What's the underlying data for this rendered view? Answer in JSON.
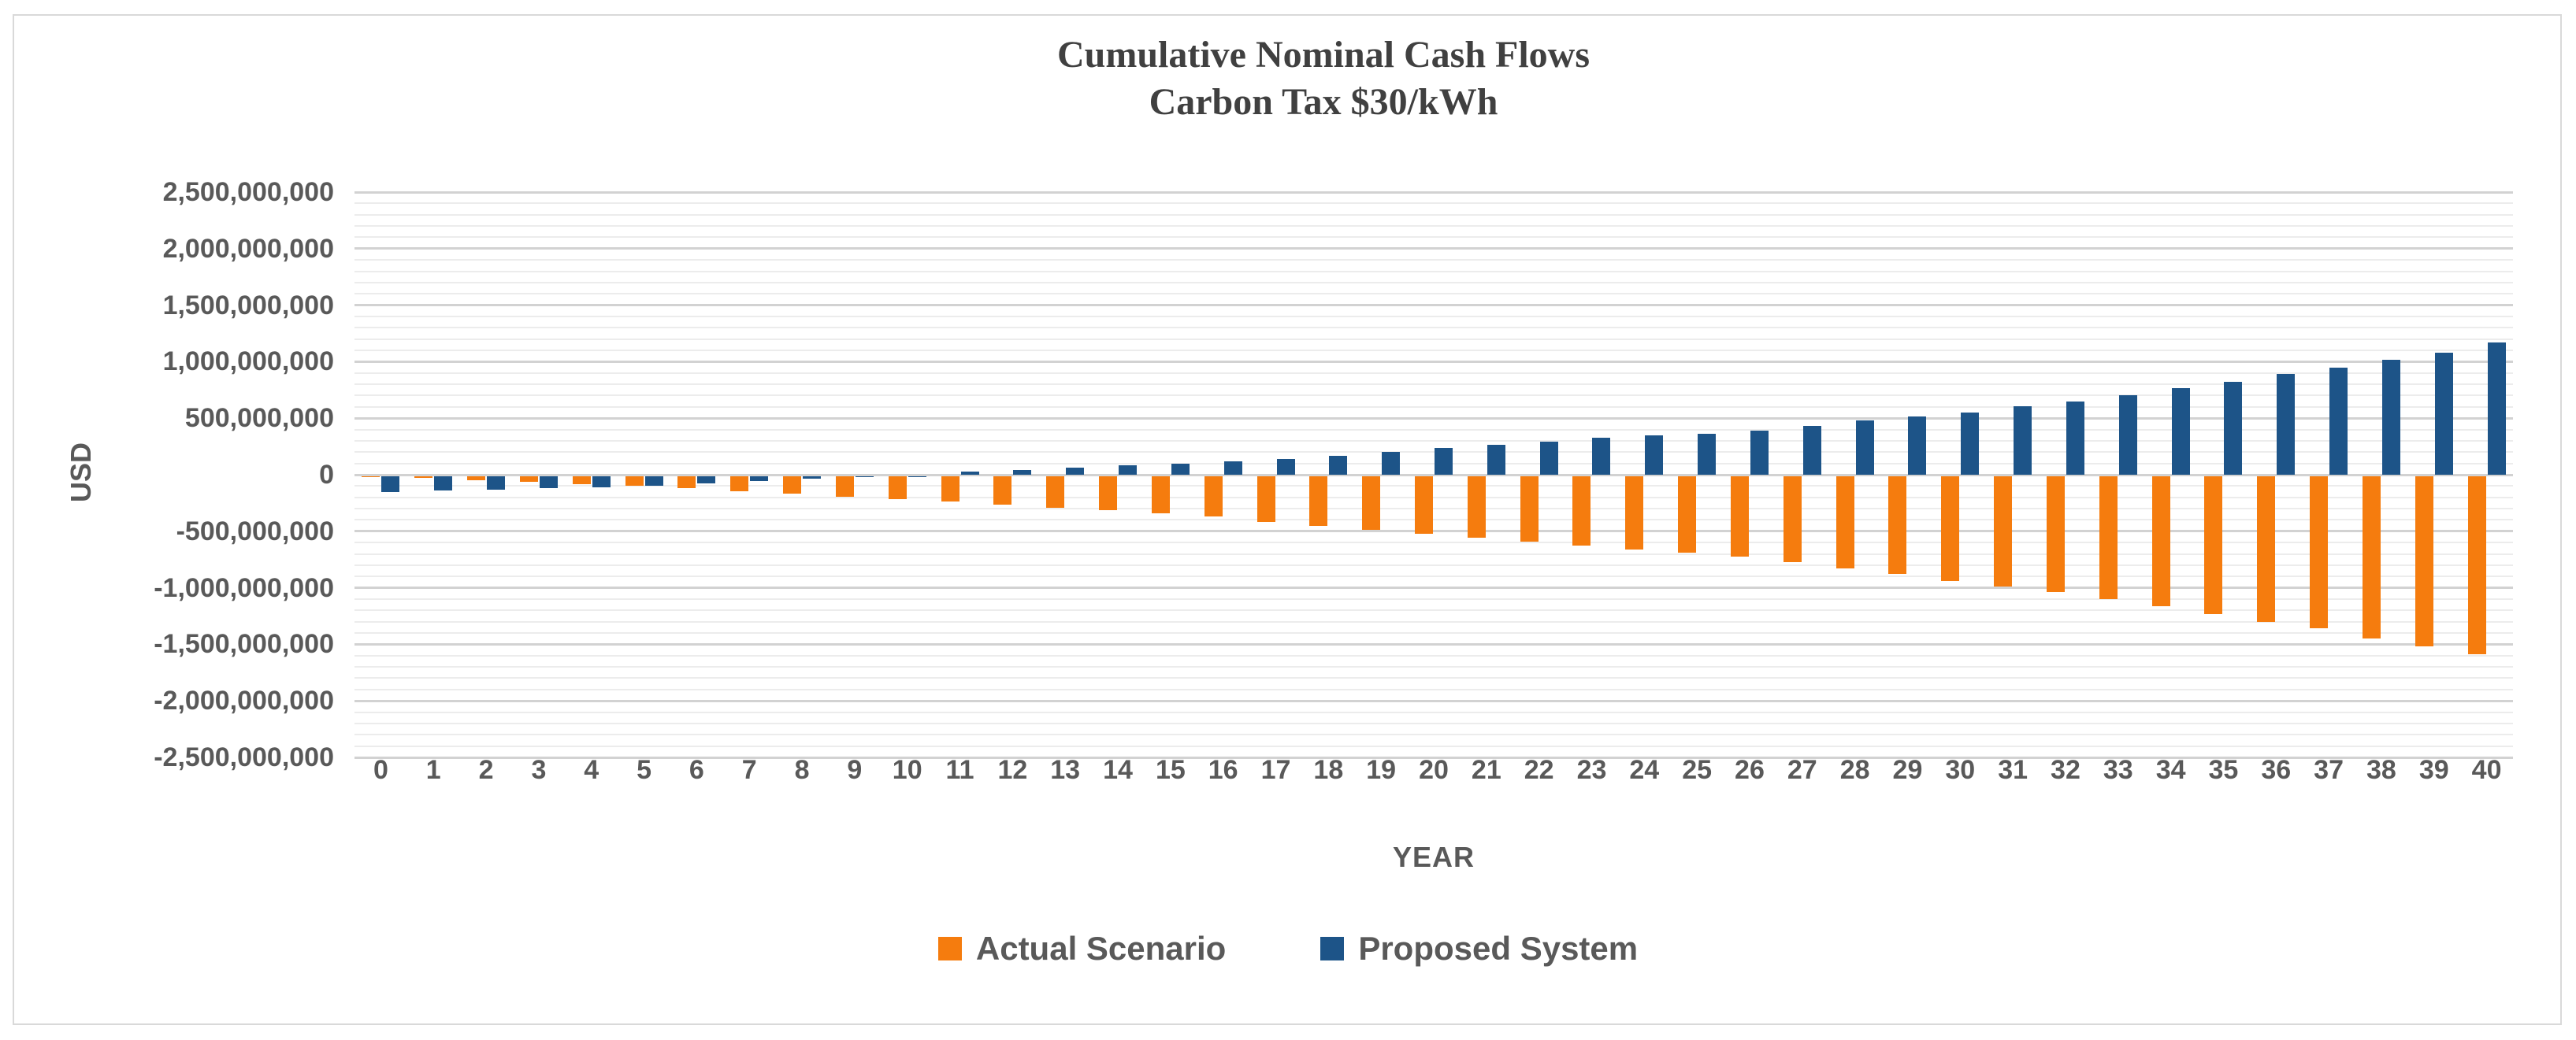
{
  "title": {
    "line1": "Cumulative Nominal Cash Flows",
    "line2": "Carbon Tax $30/kWh"
  },
  "y_axis": {
    "title": "USD",
    "tick_labels": [
      "2,500,000,000",
      "2,000,000,000",
      "1,500,000,000",
      "1,000,000,000",
      "500,000,000",
      "0",
      "-500,000,000",
      "-1,000,000,000",
      "-1,500,000,000",
      "-2,000,000,000",
      "-2,500,000,000"
    ]
  },
  "x_axis": {
    "title": "YEAR"
  },
  "legend": {
    "items": [
      {
        "label": "Actual Scenario",
        "color": "#F57C0E"
      },
      {
        "label": "Proposed System",
        "color": "#1D5488"
      }
    ]
  },
  "colors": {
    "actual": "#F57C0E",
    "proposed": "#1D5488",
    "gridline_minor": "#ECECEC",
    "gridline_major": "#D2D2D2",
    "axis_text": "#595959",
    "title_text": "#404040",
    "chart_border": "#D9D9D9"
  },
  "chart_data": {
    "type": "bar",
    "title": "Cumulative Nominal Cash Flows — Carbon Tax $30/kWh",
    "xlabel": "YEAR",
    "ylabel": "USD",
    "ylim": [
      -2500000000,
      2500000000
    ],
    "y_major_step": 500000000,
    "y_minor_step": 100000000,
    "grid": true,
    "legend_position": "bottom",
    "categories": [
      "0",
      "1",
      "2",
      "3",
      "4",
      "5",
      "6",
      "7",
      "8",
      "9",
      "10",
      "11",
      "12",
      "13",
      "14",
      "15",
      "16",
      "17",
      "18",
      "19",
      "20",
      "21",
      "22",
      "23",
      "24",
      "25",
      "26",
      "27",
      "28",
      "29",
      "30",
      "31",
      "32",
      "33",
      "34",
      "35",
      "36",
      "37",
      "38",
      "39",
      "40"
    ],
    "series": [
      {
        "name": "Actual Scenario",
        "color": "#F57C0E",
        "values": [
          -5000000,
          -20000000,
          -40000000,
          -55000000,
          -70000000,
          -90000000,
          -110000000,
          -135000000,
          -160000000,
          -185000000,
          -205000000,
          -225000000,
          -255000000,
          -285000000,
          -305000000,
          -330000000,
          -360000000,
          -410000000,
          -445000000,
          -475000000,
          -515000000,
          -545000000,
          -580000000,
          -615000000,
          -650000000,
          -680000000,
          -715000000,
          -760000000,
          -815000000,
          -870000000,
          -930000000,
          -980000000,
          -1030000000,
          -1090000000,
          -1155000000,
          -1220000000,
          -1290000000,
          -1350000000,
          -1440000000,
          -1510000000,
          -1575000000
        ]
      },
      {
        "name": "Proposed System",
        "color": "#1D5488",
        "values": [
          -140000000,
          -130000000,
          -120000000,
          -110000000,
          -100000000,
          -85000000,
          -65000000,
          -45000000,
          -25000000,
          -10000000,
          -5000000,
          25000000,
          40000000,
          60000000,
          85000000,
          95000000,
          115000000,
          140000000,
          165000000,
          205000000,
          235000000,
          265000000,
          290000000,
          330000000,
          345000000,
          360000000,
          390000000,
          435000000,
          480000000,
          515000000,
          550000000,
          605000000,
          650000000,
          705000000,
          765000000,
          820000000,
          890000000,
          950000000,
          1020000000,
          1080000000,
          1170000000
        ]
      }
    ]
  }
}
